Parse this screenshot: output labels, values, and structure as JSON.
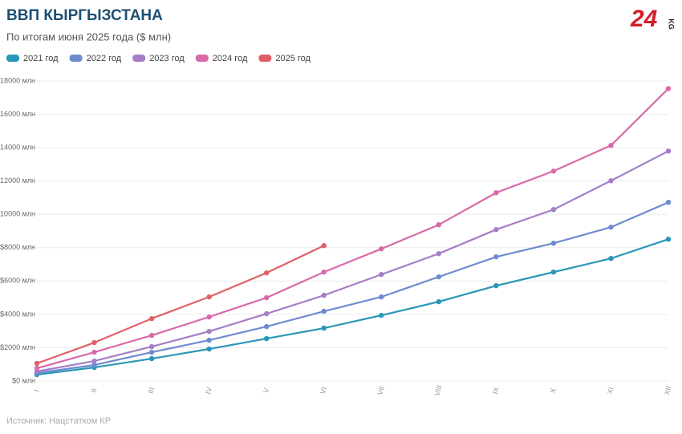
{
  "chart_data": {
    "type": "line",
    "title": "ВВП КЫРГЫЗСТАНА",
    "subtitle": "По итогам июня 2025 года ($ млн)",
    "source": "Источник: Нацстатком КР",
    "logo": "24",
    "logo_sub": "KG",
    "categories": [
      "I",
      "II",
      "III",
      "IV",
      "V",
      "VI",
      "VII",
      "VIII",
      "IX",
      "X",
      "XI",
      "XII"
    ],
    "series": [
      {
        "name": "2021 год",
        "color": "#2a96b8",
        "values": [
          385,
          817,
          1346,
          1923,
          2548,
          3173,
          3942,
          4760,
          5721,
          6538,
          7356,
          8510
        ]
      },
      {
        "name": "2022 год",
        "color": "#6f8bd0",
        "values": [
          480,
          962,
          1731,
          2452,
          3269,
          4183,
          5048,
          6250,
          7452,
          8269,
          9231,
          10721
        ]
      },
      {
        "name": "2023 год",
        "color": "#a57ec8",
        "values": [
          577,
          1202,
          2067,
          2981,
          4038,
          5144,
          6394,
          7644,
          9087,
          10288,
          12019,
          13798
        ]
      },
      {
        "name": "2024 год",
        "color": "#d86aa8",
        "values": [
          769,
          1731,
          2740,
          3846,
          5000,
          6538,
          7933,
          9375,
          11298,
          12596,
          14135,
          17548
        ]
      },
      {
        "name": "2025 год",
        "color": "#e0606a",
        "values": [
          1058,
          2308,
          3750,
          5048,
          6490,
          8125,
          null,
          null,
          null,
          null,
          null,
          null
        ]
      }
    ],
    "ylim": [
      0,
      18000
    ],
    "yticks": [
      {
        "value": 0,
        "label": "$0 млн"
      },
      {
        "value": 2000,
        "label": "$2000 млн"
      },
      {
        "value": 4000,
        "label": "$4000 млн"
      },
      {
        "value": 6000,
        "label": "$6000 млн"
      },
      {
        "value": 8000,
        "label": "$8000 млн"
      },
      {
        "value": 10000,
        "label": "$10000 млн"
      },
      {
        "value": 12000,
        "label": "$12000 млн"
      },
      {
        "value": 14000,
        "label": "$14000 млн"
      },
      {
        "value": 16000,
        "label": "$16000 млн"
      },
      {
        "value": 18000,
        "label": "$18000 млн"
      }
    ],
    "grid": true
  }
}
